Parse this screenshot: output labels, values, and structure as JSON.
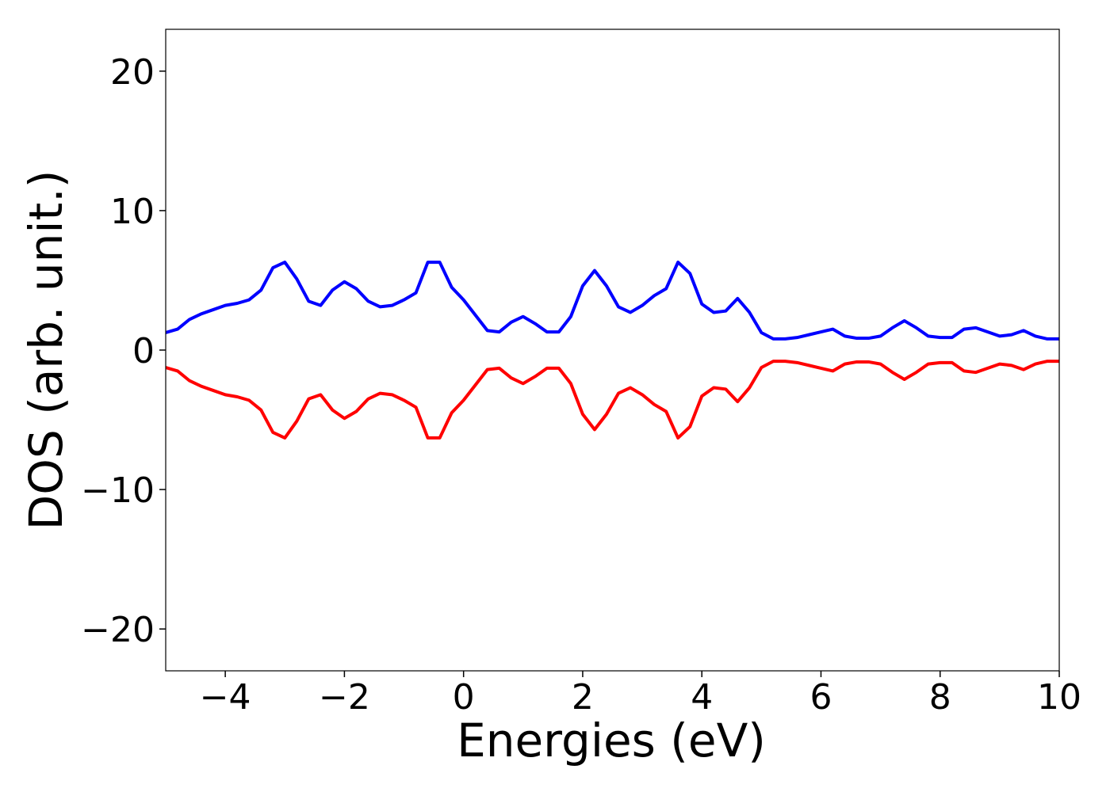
{
  "chart_data": {
    "type": "line",
    "xlabel": "Energies (eV)",
    "ylabel": "DOS (arb. unit.)",
    "x": [
      -5,
      -4.8,
      -4.6,
      -4.4,
      -4.2,
      -4,
      -3.8,
      -3.6,
      -3.4,
      -3.2,
      -3,
      -2.8,
      -2.6,
      -2.4,
      -2.2,
      -2,
      -1.8,
      -1.6,
      -1.4,
      -1.2,
      -1,
      -0.8,
      -0.6,
      -0.4,
      -0.2,
      0,
      0.2,
      0.4,
      0.6,
      0.8,
      1,
      1.2,
      1.4,
      1.6,
      1.8,
      2,
      2.2,
      2.4,
      2.6,
      2.8,
      3,
      3.2,
      3.4,
      3.6,
      3.8,
      4,
      4.2,
      4.4,
      4.6,
      4.8,
      5,
      5.2,
      5.4,
      5.6,
      5.8,
      6,
      6.2,
      6.4,
      6.6,
      6.8,
      7,
      7.2,
      7.4,
      7.6,
      7.8,
      8,
      8.2,
      8.4,
      8.6,
      8.8,
      9,
      9.2,
      9.4,
      9.6,
      9.8,
      10
    ],
    "series": [
      {
        "color": "#0000ff",
        "values": [
          1.25,
          1.5,
          2.2,
          2.6,
          2.9,
          3.2,
          3.35,
          3.6,
          4.3,
          5.9,
          6.3,
          5.1,
          3.5,
          3.2,
          4.3,
          4.9,
          4.4,
          3.5,
          3.1,
          3.2,
          3.6,
          4.1,
          6.3,
          6.3,
          4.5,
          3.6,
          2.5,
          1.4,
          1.3,
          2.0,
          2.4,
          1.9,
          1.3,
          1.3,
          2.4,
          4.6,
          5.7,
          4.6,
          3.1,
          2.7,
          3.2,
          3.9,
          4.4,
          6.3,
          5.5,
          3.3,
          2.7,
          2.8,
          3.7,
          2.7,
          1.25,
          0.8,
          0.8,
          0.9,
          1.1,
          1.3,
          1.5,
          1.0,
          0.85,
          0.85,
          1.0,
          1.6,
          2.1,
          1.6,
          1.0,
          0.9,
          0.9,
          1.5,
          1.6,
          1.3,
          1.0,
          1.1,
          1.4,
          1.0,
          0.8,
          0.8
        ]
      },
      {
        "color": "#ff0000",
        "values": [
          -1.25,
          -1.5,
          -2.2,
          -2.6,
          -2.9,
          -3.2,
          -3.35,
          -3.6,
          -4.3,
          -5.9,
          -6.3,
          -5.1,
          -3.5,
          -3.2,
          -4.3,
          -4.9,
          -4.4,
          -3.5,
          -3.1,
          -3.2,
          -3.6,
          -4.1,
          -6.3,
          -6.3,
          -4.5,
          -3.6,
          -2.5,
          -1.4,
          -1.3,
          -2.0,
          -2.4,
          -1.9,
          -1.3,
          -1.3,
          -2.4,
          -4.6,
          -5.7,
          -4.6,
          -3.1,
          -2.7,
          -3.2,
          -3.9,
          -4.4,
          -6.3,
          -5.5,
          -3.3,
          -2.7,
          -2.8,
          -3.7,
          -2.7,
          -1.25,
          -0.8,
          -0.8,
          -0.9,
          -1.1,
          -1.3,
          -1.5,
          -1.0,
          -0.85,
          -0.85,
          -1.0,
          -1.6,
          -2.1,
          -1.6,
          -1.0,
          -0.9,
          -0.9,
          -1.5,
          -1.6,
          -1.3,
          -1.0,
          -1.1,
          -1.4,
          -1.0,
          -0.8,
          -0.8
        ]
      }
    ],
    "xlim": [
      -5,
      10
    ],
    "xticks": [
      {
        "value": -4,
        "label": "−4"
      },
      {
        "value": -2,
        "label": "−2"
      },
      0,
      2,
      4,
      6,
      8,
      10
    ],
    "ylim": [
      -23,
      23
    ],
    "yticks": [
      {
        "value": -20,
        "label": "−20"
      },
      {
        "value": -10,
        "label": "−10"
      },
      0,
      10,
      20
    ]
  }
}
